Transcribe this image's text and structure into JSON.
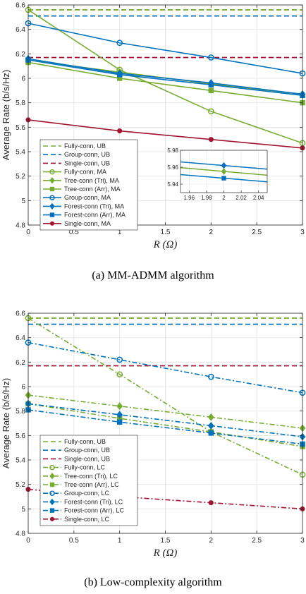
{
  "captions": [
    "(a) MM-ADMM algorithm",
    "(b) Low-complexity algorithm"
  ],
  "colors": {
    "green": "#77AC30",
    "blue": "#0072BD",
    "red": "#A2142F"
  },
  "chart_data": [
    {
      "type": "line",
      "caption": "(a) MM-ADMM algorithm",
      "xlabel": "R (Ω)",
      "ylabel": "Average Rate (b/s/Hz)",
      "xlim": [
        0,
        3
      ],
      "ylim": [
        4.8,
        6.6
      ],
      "xticks": [
        0,
        0.5,
        1,
        1.5,
        2,
        2.5,
        3
      ],
      "xtick_labels": [
        "0",
        "0.5",
        "1",
        "1.5",
        "2",
        "2.5",
        "3"
      ],
      "yticks": [
        4.8,
        5,
        5.2,
        5.4,
        5.6,
        5.8,
        6,
        6.2,
        6.4,
        6.6
      ],
      "ytick_labels": [
        "4.8",
        "5",
        "5.2",
        "5.4",
        "5.6",
        "5.8",
        "6",
        "6.2",
        "6.4",
        "6.6"
      ],
      "grid": true,
      "legend_position": "bottom-left",
      "x": [
        0,
        1,
        2,
        3
      ],
      "series": [
        {
          "name": "Fully-conn, UB",
          "color": "green",
          "style": "dashed",
          "marker": "none",
          "values": [
            6.56,
            6.56,
            6.56,
            6.56
          ]
        },
        {
          "name": "Group-conn, UB",
          "color": "blue",
          "style": "dashed",
          "marker": "none",
          "values": [
            6.51,
            6.51,
            6.51,
            6.51
          ]
        },
        {
          "name": "Single-conn, UB",
          "color": "red",
          "style": "dashed",
          "marker": "none",
          "values": [
            6.17,
            6.17,
            6.17,
            6.17
          ]
        },
        {
          "name": "Fully-conn, MA",
          "color": "green",
          "style": "solid",
          "marker": "circle",
          "values": [
            6.56,
            6.07,
            5.73,
            5.47
          ]
        },
        {
          "name": "Tree-conn (Tri), MA",
          "color": "green",
          "style": "solid",
          "marker": "diamond",
          "values": [
            6.15,
            6.05,
            5.955,
            5.87
          ]
        },
        {
          "name": "Tree-conn (Arr), MA",
          "color": "green",
          "style": "solid",
          "marker": "square",
          "values": [
            6.13,
            6.0,
            5.9,
            5.8
          ]
        },
        {
          "name": "Group-conn, MA",
          "color": "blue",
          "style": "solid",
          "marker": "circle",
          "values": [
            6.45,
            6.29,
            6.17,
            6.04
          ]
        },
        {
          "name": "Forest-conn (Tri), MA",
          "color": "blue",
          "style": "solid",
          "marker": "diamond",
          "values": [
            6.16,
            6.04,
            5.962,
            5.87
          ]
        },
        {
          "name": "Forest-conn (Arr), MA",
          "color": "blue",
          "style": "solid",
          "marker": "square",
          "values": [
            6.15,
            6.03,
            5.947,
            5.86
          ]
        },
        {
          "name": "Single-conn, MA",
          "color": "red",
          "style": "solid",
          "marker": "dot",
          "values": [
            5.66,
            5.57,
            5.5,
            5.43
          ]
        }
      ],
      "inset": {
        "xlim": [
          1.95,
          2.05
        ],
        "ylim": [
          5.93,
          5.98
        ],
        "xticks": [
          1.96,
          1.98,
          2,
          2.02,
          2.04
        ],
        "xtick_labels": [
          "1.96",
          "1.98",
          "2",
          "2.02",
          "2.04"
        ],
        "yticks": [
          5.94,
          5.96,
          5.98
        ],
        "ytick_labels": [
          "5.94",
          "5.96",
          "5.98"
        ]
      }
    },
    {
      "type": "line",
      "caption": "(b) Low-complexity algorithm",
      "xlabel": "R (Ω)",
      "ylabel": "Average Rate (b/s/Hz)",
      "xlim": [
        0,
        3
      ],
      "ylim": [
        4.8,
        6.6
      ],
      "xticks": [
        0,
        0.5,
        1,
        1.5,
        2,
        2.5,
        3
      ],
      "xtick_labels": [
        "0",
        "0.5",
        "1",
        "1.5",
        "2",
        "2.5",
        "3"
      ],
      "yticks": [
        4.8,
        5,
        5.2,
        5.4,
        5.6,
        5.8,
        6,
        6.2,
        6.4,
        6.6
      ],
      "ytick_labels": [
        "4.8",
        "5",
        "5.2",
        "5.4",
        "5.6",
        "5.8",
        "6",
        "6.2",
        "6.4",
        "6.6"
      ],
      "grid": true,
      "legend_position": "bottom-left",
      "x": [
        0,
        1,
        2,
        3
      ],
      "series": [
        {
          "name": "Fully-conn, UB",
          "color": "green",
          "style": "dashed",
          "marker": "none",
          "values": [
            6.56,
            6.56,
            6.56,
            6.56
          ]
        },
        {
          "name": "Group-conn, UB",
          "color": "blue",
          "style": "dashed",
          "marker": "none",
          "values": [
            6.51,
            6.51,
            6.51,
            6.51
          ]
        },
        {
          "name": "Single-conn, UB",
          "color": "red",
          "style": "dashed",
          "marker": "none",
          "values": [
            6.17,
            6.17,
            6.17,
            6.17
          ]
        },
        {
          "name": "Fully-conn, LC",
          "color": "green",
          "style": "dashdot",
          "marker": "circle",
          "values": [
            6.56,
            6.1,
            5.63,
            5.28
          ]
        },
        {
          "name": "Tree-conn (Tri), LC",
          "color": "green",
          "style": "dashdot",
          "marker": "diamond",
          "values": [
            5.93,
            5.84,
            5.75,
            5.66
          ]
        },
        {
          "name": "Tree-conn (Arr), LC",
          "color": "green",
          "style": "dashdot",
          "marker": "square",
          "values": [
            5.86,
            5.74,
            5.63,
            5.51
          ]
        },
        {
          "name": "Group-conn, LC",
          "color": "blue",
          "style": "dashdot",
          "marker": "circle",
          "values": [
            6.36,
            6.22,
            6.08,
            5.95
          ]
        },
        {
          "name": "Forest-conn (Tri), LC",
          "color": "blue",
          "style": "dashdot",
          "marker": "diamond",
          "values": [
            5.86,
            5.77,
            5.68,
            5.59
          ]
        },
        {
          "name": "Forest-conn (Arr), LC",
          "color": "blue",
          "style": "dashdot",
          "marker": "square",
          "values": [
            5.81,
            5.71,
            5.62,
            5.53
          ]
        },
        {
          "name": "Single-conn, LC",
          "color": "red",
          "style": "dashdot",
          "marker": "dot",
          "values": [
            5.16,
            5.1,
            5.05,
            5.0
          ]
        }
      ]
    }
  ]
}
